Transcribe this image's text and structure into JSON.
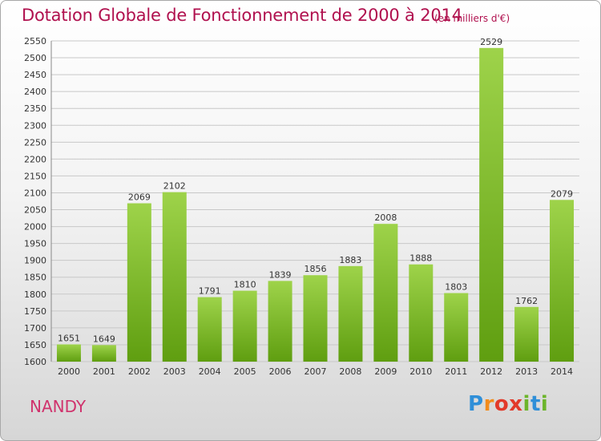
{
  "title": "Dotation Globale de Fonctionnement de 2000 à 2014",
  "subtitle": "(en milliers d'€)",
  "city": "NANDY",
  "logo": {
    "letters": [
      "P",
      "r",
      "o",
      "x",
      "i",
      "t",
      "i"
    ],
    "colors": [
      "#2f8fd8",
      "#f28c1c",
      "#e23a2a",
      "#e23a2a",
      "#6cb52b",
      "#2f8fd8",
      "#6cb52b"
    ]
  },
  "colors": {
    "bar_top": "#9ed34a",
    "bar_bottom": "#5f9e10",
    "title": "#b0104e"
  },
  "chart_data": {
    "type": "bar",
    "categories": [
      "2000",
      "2001",
      "2002",
      "2003",
      "2004",
      "2005",
      "2006",
      "2007",
      "2008",
      "2009",
      "2010",
      "2011",
      "2012",
      "2013",
      "2014"
    ],
    "values": [
      1651,
      1649,
      2069,
      2102,
      1791,
      1810,
      1839,
      1856,
      1883,
      2008,
      1888,
      1803,
      2529,
      1762,
      2079
    ],
    "ylim": [
      1600,
      2550
    ],
    "yticks": [
      1600,
      1650,
      1700,
      1750,
      1800,
      1850,
      1900,
      1950,
      2000,
      2050,
      2100,
      2150,
      2200,
      2250,
      2300,
      2350,
      2400,
      2450,
      2500,
      2550
    ],
    "grid": true
  }
}
